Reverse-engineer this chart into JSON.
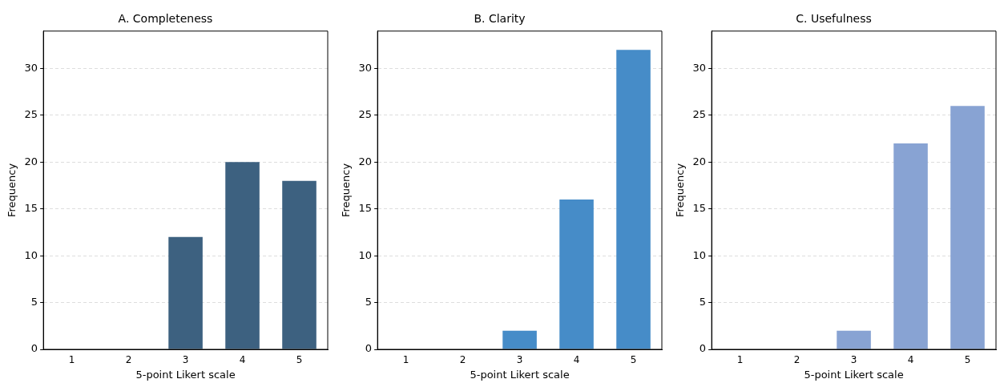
{
  "chart_data": [
    {
      "type": "bar",
      "title": "A. Completeness",
      "xlabel": "5-point Likert scale",
      "ylabel": "Frequency",
      "categories": [
        "1",
        "2",
        "3",
        "4",
        "5"
      ],
      "values": [
        0,
        0,
        12,
        20,
        18
      ],
      "color": "#3d6180",
      "ylim": [
        0,
        34
      ],
      "yticks": [
        0,
        5,
        10,
        15,
        20,
        25,
        30
      ],
      "grid": "y"
    },
    {
      "type": "bar",
      "title": "B. Clarity",
      "xlabel": "5-point Likert scale",
      "ylabel": "Frequency",
      "categories": [
        "1",
        "2",
        "3",
        "4",
        "5"
      ],
      "values": [
        0,
        0,
        2,
        16,
        32
      ],
      "color": "#468cc8",
      "ylim": [
        0,
        34
      ],
      "yticks": [
        0,
        5,
        10,
        15,
        20,
        25,
        30
      ],
      "grid": "y"
    },
    {
      "type": "bar",
      "title": "C. Usefulness",
      "xlabel": "5-point Likert scale",
      "ylabel": "Frequency",
      "categories": [
        "1",
        "2",
        "3",
        "4",
        "5"
      ],
      "values": [
        0,
        0,
        2,
        22,
        26
      ],
      "color": "#88a3d3",
      "ylim": [
        0,
        34
      ],
      "yticks": [
        0,
        5,
        10,
        15,
        20,
        25,
        30
      ],
      "grid": "y"
    }
  ]
}
